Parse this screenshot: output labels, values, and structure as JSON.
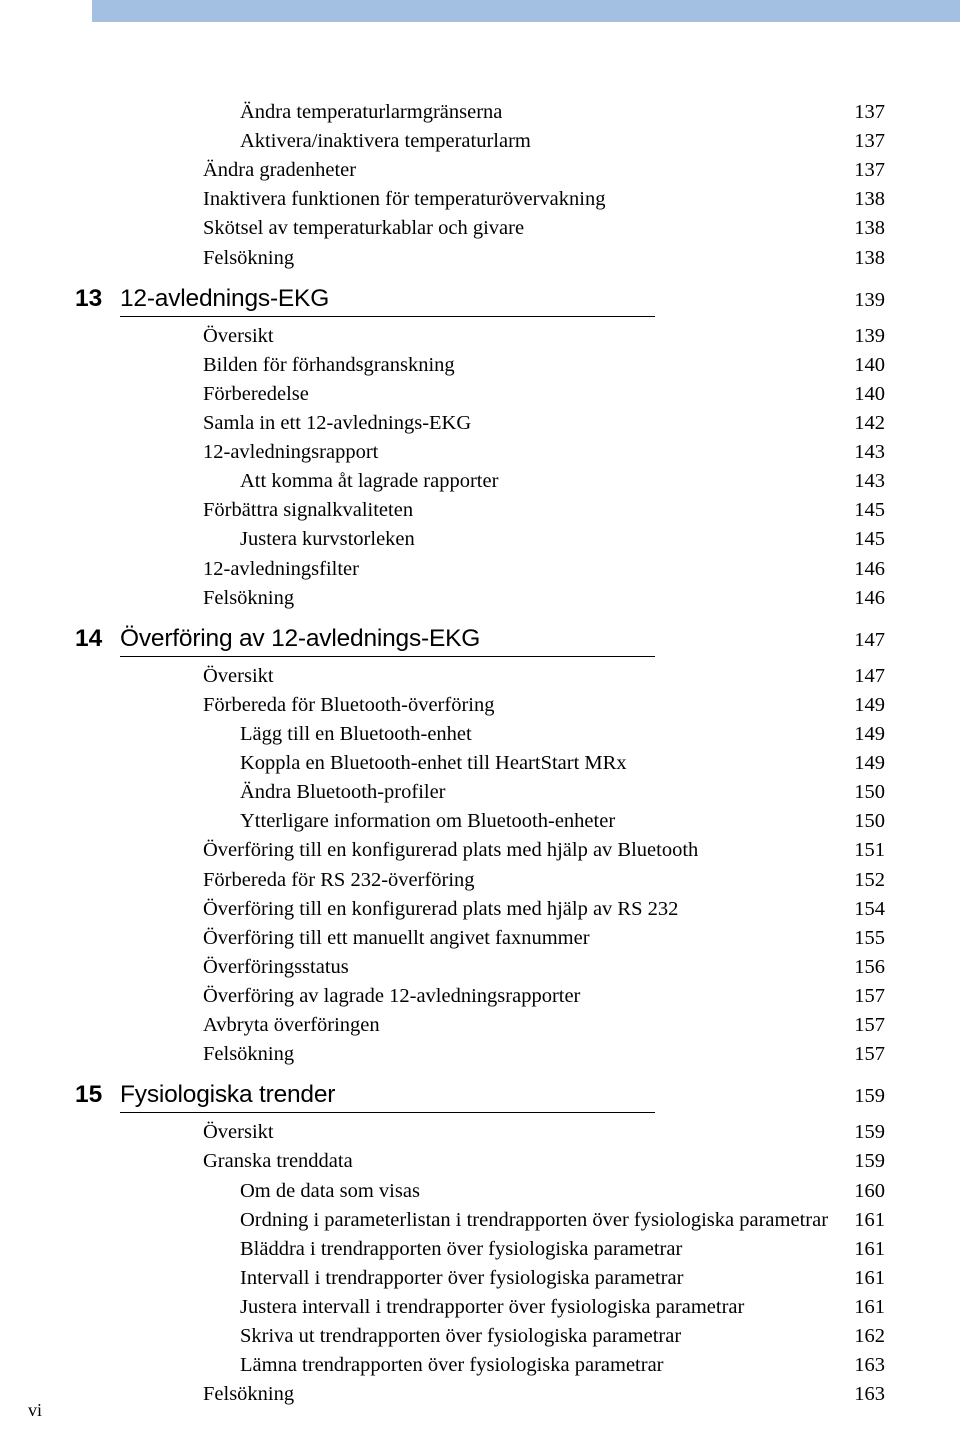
{
  "folio": "vi",
  "pre_items": [
    {
      "level": 3,
      "label": "Ändra temperaturlarmgränserna",
      "page": "137"
    },
    {
      "level": 3,
      "label": "Aktivera/inaktivera temperaturlarm",
      "page": "137"
    },
    {
      "level": 2,
      "label": "Ändra gradenheter",
      "page": "137"
    },
    {
      "level": 2,
      "label": "Inaktivera funktionen för temperaturövervakning",
      "page": "138"
    },
    {
      "level": 2,
      "label": "Skötsel av temperaturkablar och givare",
      "page": "138"
    },
    {
      "level": 2,
      "label": "Felsökning",
      "page": "138"
    }
  ],
  "chapters": [
    {
      "num": "13",
      "title": "12-avlednings-EKG",
      "page": "139",
      "items": [
        {
          "level": 2,
          "label": "Översikt",
          "page": "139"
        },
        {
          "level": 2,
          "label": "Bilden för förhandsgranskning",
          "page": "140"
        },
        {
          "level": 2,
          "label": "Förberedelse",
          "page": "140"
        },
        {
          "level": 2,
          "label": "Samla in ett 12-avlednings-EKG",
          "page": "142"
        },
        {
          "level": 2,
          "label": "12-avledningsrapport",
          "page": "143"
        },
        {
          "level": 3,
          "label": "Att komma åt lagrade rapporter",
          "page": "143"
        },
        {
          "level": 2,
          "label": "Förbättra signalkvaliteten",
          "page": "145"
        },
        {
          "level": 3,
          "label": "Justera kurvstorleken",
          "page": "145"
        },
        {
          "level": 2,
          "label": "12-avledningsfilter",
          "page": "146"
        },
        {
          "level": 2,
          "label": "Felsökning",
          "page": "146"
        }
      ]
    },
    {
      "num": "14",
      "title": "Överföring av 12-avlednings-EKG",
      "page": "147",
      "items": [
        {
          "level": 2,
          "label": "Översikt",
          "page": "147"
        },
        {
          "level": 2,
          "label": "Förbereda för Bluetooth-överföring",
          "page": "149"
        },
        {
          "level": 3,
          "label": "Lägg till en Bluetooth-enhet",
          "page": "149"
        },
        {
          "level": 3,
          "label": "Koppla en Bluetooth-enhet till HeartStart MRx",
          "page": "149"
        },
        {
          "level": 3,
          "label": "Ändra Bluetooth-profiler",
          "page": "150"
        },
        {
          "level": 3,
          "label": "Ytterligare information om Bluetooth-enheter",
          "page": "150"
        },
        {
          "level": 2,
          "label": "Överföring till en konfigurerad plats med hjälp av Bluetooth",
          "page": "151"
        },
        {
          "level": 2,
          "label": "Förbereda för RS 232-överföring",
          "page": "152"
        },
        {
          "level": 2,
          "label": "Överföring till en konfigurerad plats med hjälp av RS 232",
          "page": "154"
        },
        {
          "level": 2,
          "label": "Överföring till ett manuellt angivet faxnummer",
          "page": "155"
        },
        {
          "level": 2,
          "label": "Överföringsstatus",
          "page": "156"
        },
        {
          "level": 2,
          "label": "Överföring av lagrade 12-avledningsrapporter",
          "page": "157"
        },
        {
          "level": 2,
          "label": "Avbryta överföringen",
          "page": "157"
        },
        {
          "level": 2,
          "label": "Felsökning",
          "page": "157"
        }
      ]
    },
    {
      "num": "15",
      "title": "Fysiologiska trender",
      "page": "159",
      "items": [
        {
          "level": 2,
          "label": "Översikt",
          "page": "159"
        },
        {
          "level": 2,
          "label": "Granska trenddata",
          "page": "159"
        },
        {
          "level": 3,
          "label": "Om de data som visas",
          "page": "160"
        },
        {
          "level": 3,
          "label": "Ordning i parameterlistan i trendrapporten över fysiologiska parametrar",
          "page": "161"
        },
        {
          "level": 3,
          "label": "Bläddra i trendrapporten över fysiologiska parametrar",
          "page": "161"
        },
        {
          "level": 3,
          "label": "Intervall i trendrapporter över fysiologiska parametrar",
          "page": "161"
        },
        {
          "level": 3,
          "label": "Justera intervall i trendrapporter över fysiologiska parametrar",
          "page": "161"
        },
        {
          "level": 3,
          "label": "Skriva ut trendrapporten över fysiologiska parametrar",
          "page": "162"
        },
        {
          "level": 3,
          "label": "Lämna trendrapporten över fysiologiska parametrar",
          "page": "163"
        },
        {
          "level": 2,
          "label": "Felsökning",
          "page": "163"
        }
      ]
    }
  ]
}
